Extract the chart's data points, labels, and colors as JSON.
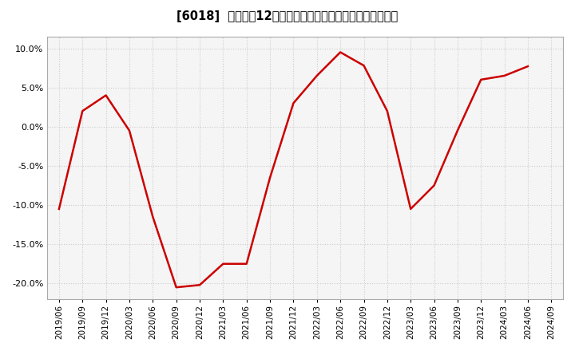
{
  "title": "[6018]  売上高の12か月移動合計の対前年同期増減率の推移",
  "line_color": "#cc0000",
  "background_color": "#ffffff",
  "plot_bg_color": "#f5f5f5",
  "grid_color": "#cccccc",
  "ylim": [
    -0.22,
    0.115
  ],
  "yticks": [
    -0.2,
    -0.15,
    -0.1,
    -0.05,
    0.0,
    0.05,
    0.1
  ],
  "x_labels": [
    "2019/06",
    "2019/09",
    "2019/12",
    "2020/03",
    "2020/06",
    "2020/09",
    "2020/12",
    "2021/03",
    "2021/06",
    "2021/09",
    "2021/12",
    "2022/03",
    "2022/06",
    "2022/09",
    "2022/12",
    "2023/03",
    "2023/06",
    "2023/09",
    "2023/12",
    "2024/03",
    "2024/06",
    "2024/09"
  ],
  "data_x": [
    "2019/06",
    "2019/09",
    "2019/12",
    "2020/03",
    "2020/06",
    "2020/09",
    "2020/12",
    "2021/03",
    "2021/06",
    "2021/09",
    "2021/12",
    "2022/03",
    "2022/06",
    "2022/09",
    "2022/12",
    "2023/03",
    "2023/06",
    "2023/09",
    "2023/12",
    "2024/03",
    "2024/06"
  ],
  "data_y": [
    -0.105,
    0.02,
    0.04,
    -0.005,
    -0.115,
    -0.205,
    -0.202,
    -0.175,
    -0.175,
    -0.065,
    0.03,
    0.065,
    0.095,
    0.078,
    0.02,
    -0.105,
    -0.075,
    -0.005,
    0.06,
    0.065,
    0.077
  ],
  "title_fontsize": 10.5,
  "tick_fontsize": 7.5,
  "ytick_fontsize": 8.0
}
